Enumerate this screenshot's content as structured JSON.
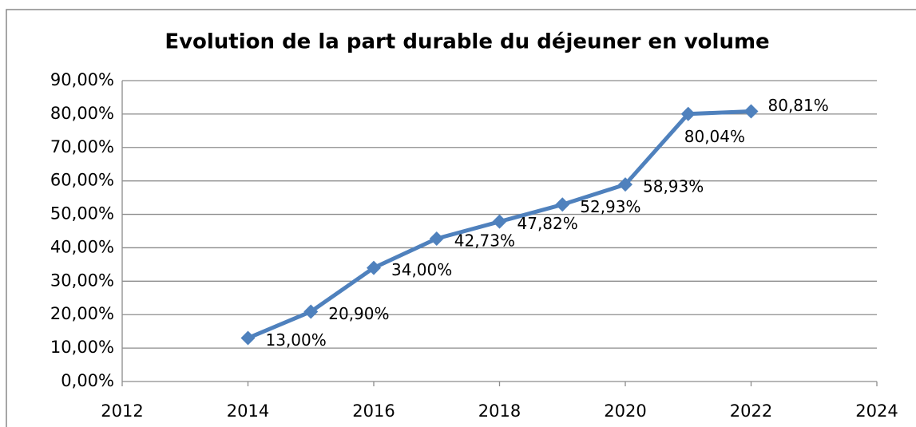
{
  "chart_data": {
    "type": "line",
    "title": "Evolution de la part durable du déjeuner en volume",
    "x": [
      2014,
      2015,
      2016,
      2017,
      2018,
      2019,
      2020,
      2021,
      2022
    ],
    "series": [
      {
        "color": "#4f81bd",
        "values": [
          13.0,
          20.9,
          34.0,
          42.73,
          47.82,
          52.93,
          58.93,
          80.04,
          80.81
        ],
        "value_labels": [
          "13,00%",
          "20,90%",
          "34,00%",
          "42,73%",
          "47,82%",
          "52,93%",
          "58,93%",
          "80,04%",
          "80,81%"
        ]
      }
    ],
    "xlim": [
      2012,
      2024
    ],
    "xticks": [
      2012,
      2014,
      2016,
      2018,
      2020,
      2022,
      2024
    ],
    "ylim": [
      0,
      90
    ],
    "yticks": [
      {
        "value": 0,
        "label": "0,00%"
      },
      {
        "value": 10,
        "label": "10,00%"
      },
      {
        "value": 20,
        "label": "20,00%"
      },
      {
        "value": 30,
        "label": "30,00%"
      },
      {
        "value": 40,
        "label": "40,00%"
      },
      {
        "value": 50,
        "label": "50,00%"
      },
      {
        "value": 60,
        "label": "60,00%"
      },
      {
        "value": 70,
        "label": "70,00%"
      },
      {
        "value": 80,
        "label": "80,00%"
      },
      {
        "value": 90,
        "label": "90,00%"
      }
    ],
    "grid": true
  }
}
